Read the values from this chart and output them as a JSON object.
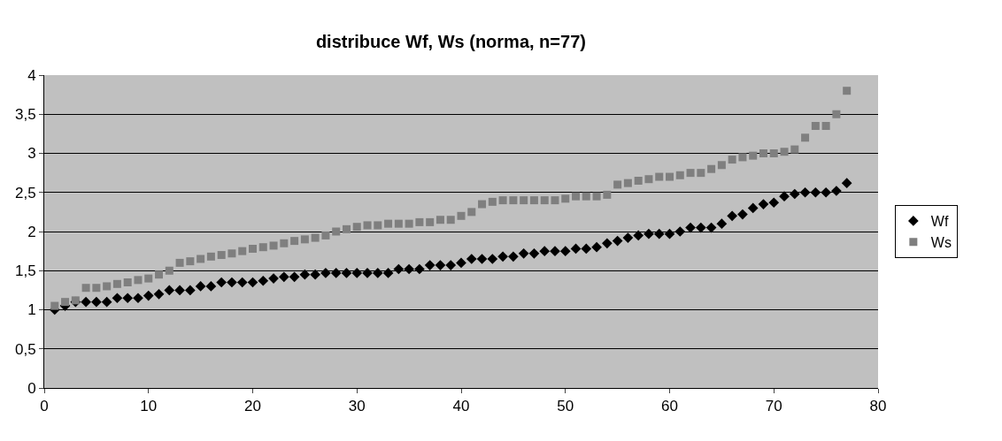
{
  "chart_data": {
    "type": "scatter",
    "title": "distribuce Wf, Ws (norma, n=77)",
    "x": [
      1,
      2,
      3,
      4,
      5,
      6,
      7,
      8,
      9,
      10,
      11,
      12,
      13,
      14,
      15,
      16,
      17,
      18,
      19,
      20,
      21,
      22,
      23,
      24,
      25,
      26,
      27,
      28,
      29,
      30,
      31,
      32,
      33,
      34,
      35,
      36,
      37,
      38,
      39,
      40,
      41,
      42,
      43,
      44,
      45,
      46,
      47,
      48,
      49,
      50,
      51,
      52,
      53,
      54,
      55,
      56,
      57,
      58,
      59,
      60,
      61,
      62,
      63,
      64,
      65,
      66,
      67,
      68,
      69,
      70,
      71,
      72,
      73,
      74,
      75,
      76,
      77
    ],
    "series": [
      {
        "name": "Wf",
        "color": "#000000",
        "marker": "diamond",
        "values": [
          1.0,
          1.05,
          1.1,
          1.1,
          1.1,
          1.1,
          1.15,
          1.15,
          1.15,
          1.18,
          1.2,
          1.25,
          1.25,
          1.25,
          1.3,
          1.3,
          1.35,
          1.35,
          1.35,
          1.35,
          1.37,
          1.4,
          1.42,
          1.42,
          1.45,
          1.45,
          1.47,
          1.47,
          1.47,
          1.47,
          1.47,
          1.47,
          1.47,
          1.52,
          1.52,
          1.52,
          1.57,
          1.57,
          1.57,
          1.6,
          1.65,
          1.65,
          1.65,
          1.68,
          1.68,
          1.72,
          1.72,
          1.75,
          1.75,
          1.75,
          1.78,
          1.78,
          1.8,
          1.85,
          1.88,
          1.92,
          1.95,
          1.97,
          1.97,
          1.97,
          2.0,
          2.05,
          2.05,
          2.05,
          2.1,
          2.2,
          2.22,
          2.3,
          2.35,
          2.37,
          2.45,
          2.48,
          2.5,
          2.5,
          2.5,
          2.52,
          2.62
        ]
      },
      {
        "name": "Ws",
        "color": "#7f7f7f",
        "marker": "square",
        "values": [
          1.05,
          1.1,
          1.12,
          1.28,
          1.28,
          1.3,
          1.33,
          1.35,
          1.38,
          1.4,
          1.45,
          1.5,
          1.6,
          1.62,
          1.65,
          1.68,
          1.7,
          1.72,
          1.75,
          1.78,
          1.8,
          1.82,
          1.85,
          1.88,
          1.9,
          1.92,
          1.95,
          2.0,
          2.03,
          2.06,
          2.08,
          2.08,
          2.1,
          2.1,
          2.1,
          2.12,
          2.12,
          2.15,
          2.15,
          2.2,
          2.25,
          2.35,
          2.38,
          2.4,
          2.4,
          2.4,
          2.4,
          2.4,
          2.4,
          2.42,
          2.45,
          2.45,
          2.45,
          2.47,
          2.6,
          2.62,
          2.65,
          2.67,
          2.7,
          2.7,
          2.72,
          2.75,
          2.75,
          2.8,
          2.85,
          2.92,
          2.95,
          2.97,
          3.0,
          3.0,
          3.02,
          3.05,
          3.2,
          3.35,
          3.35,
          3.5,
          3.8
        ]
      }
    ],
    "xlim": [
      0,
      80
    ],
    "xticks": [
      0,
      10,
      20,
      30,
      40,
      50,
      60,
      70,
      80
    ],
    "ylim": [
      0,
      4
    ],
    "yticks": [
      0,
      {
        "value": 0.5,
        "label": "0,5"
      },
      1,
      {
        "value": 1.5,
        "label": "1,5"
      },
      2,
      {
        "value": 2.5,
        "label": "2,5"
      },
      3,
      {
        "value": 3.5,
        "label": "3,5"
      },
      4
    ],
    "grid": "y",
    "legend": "right"
  }
}
